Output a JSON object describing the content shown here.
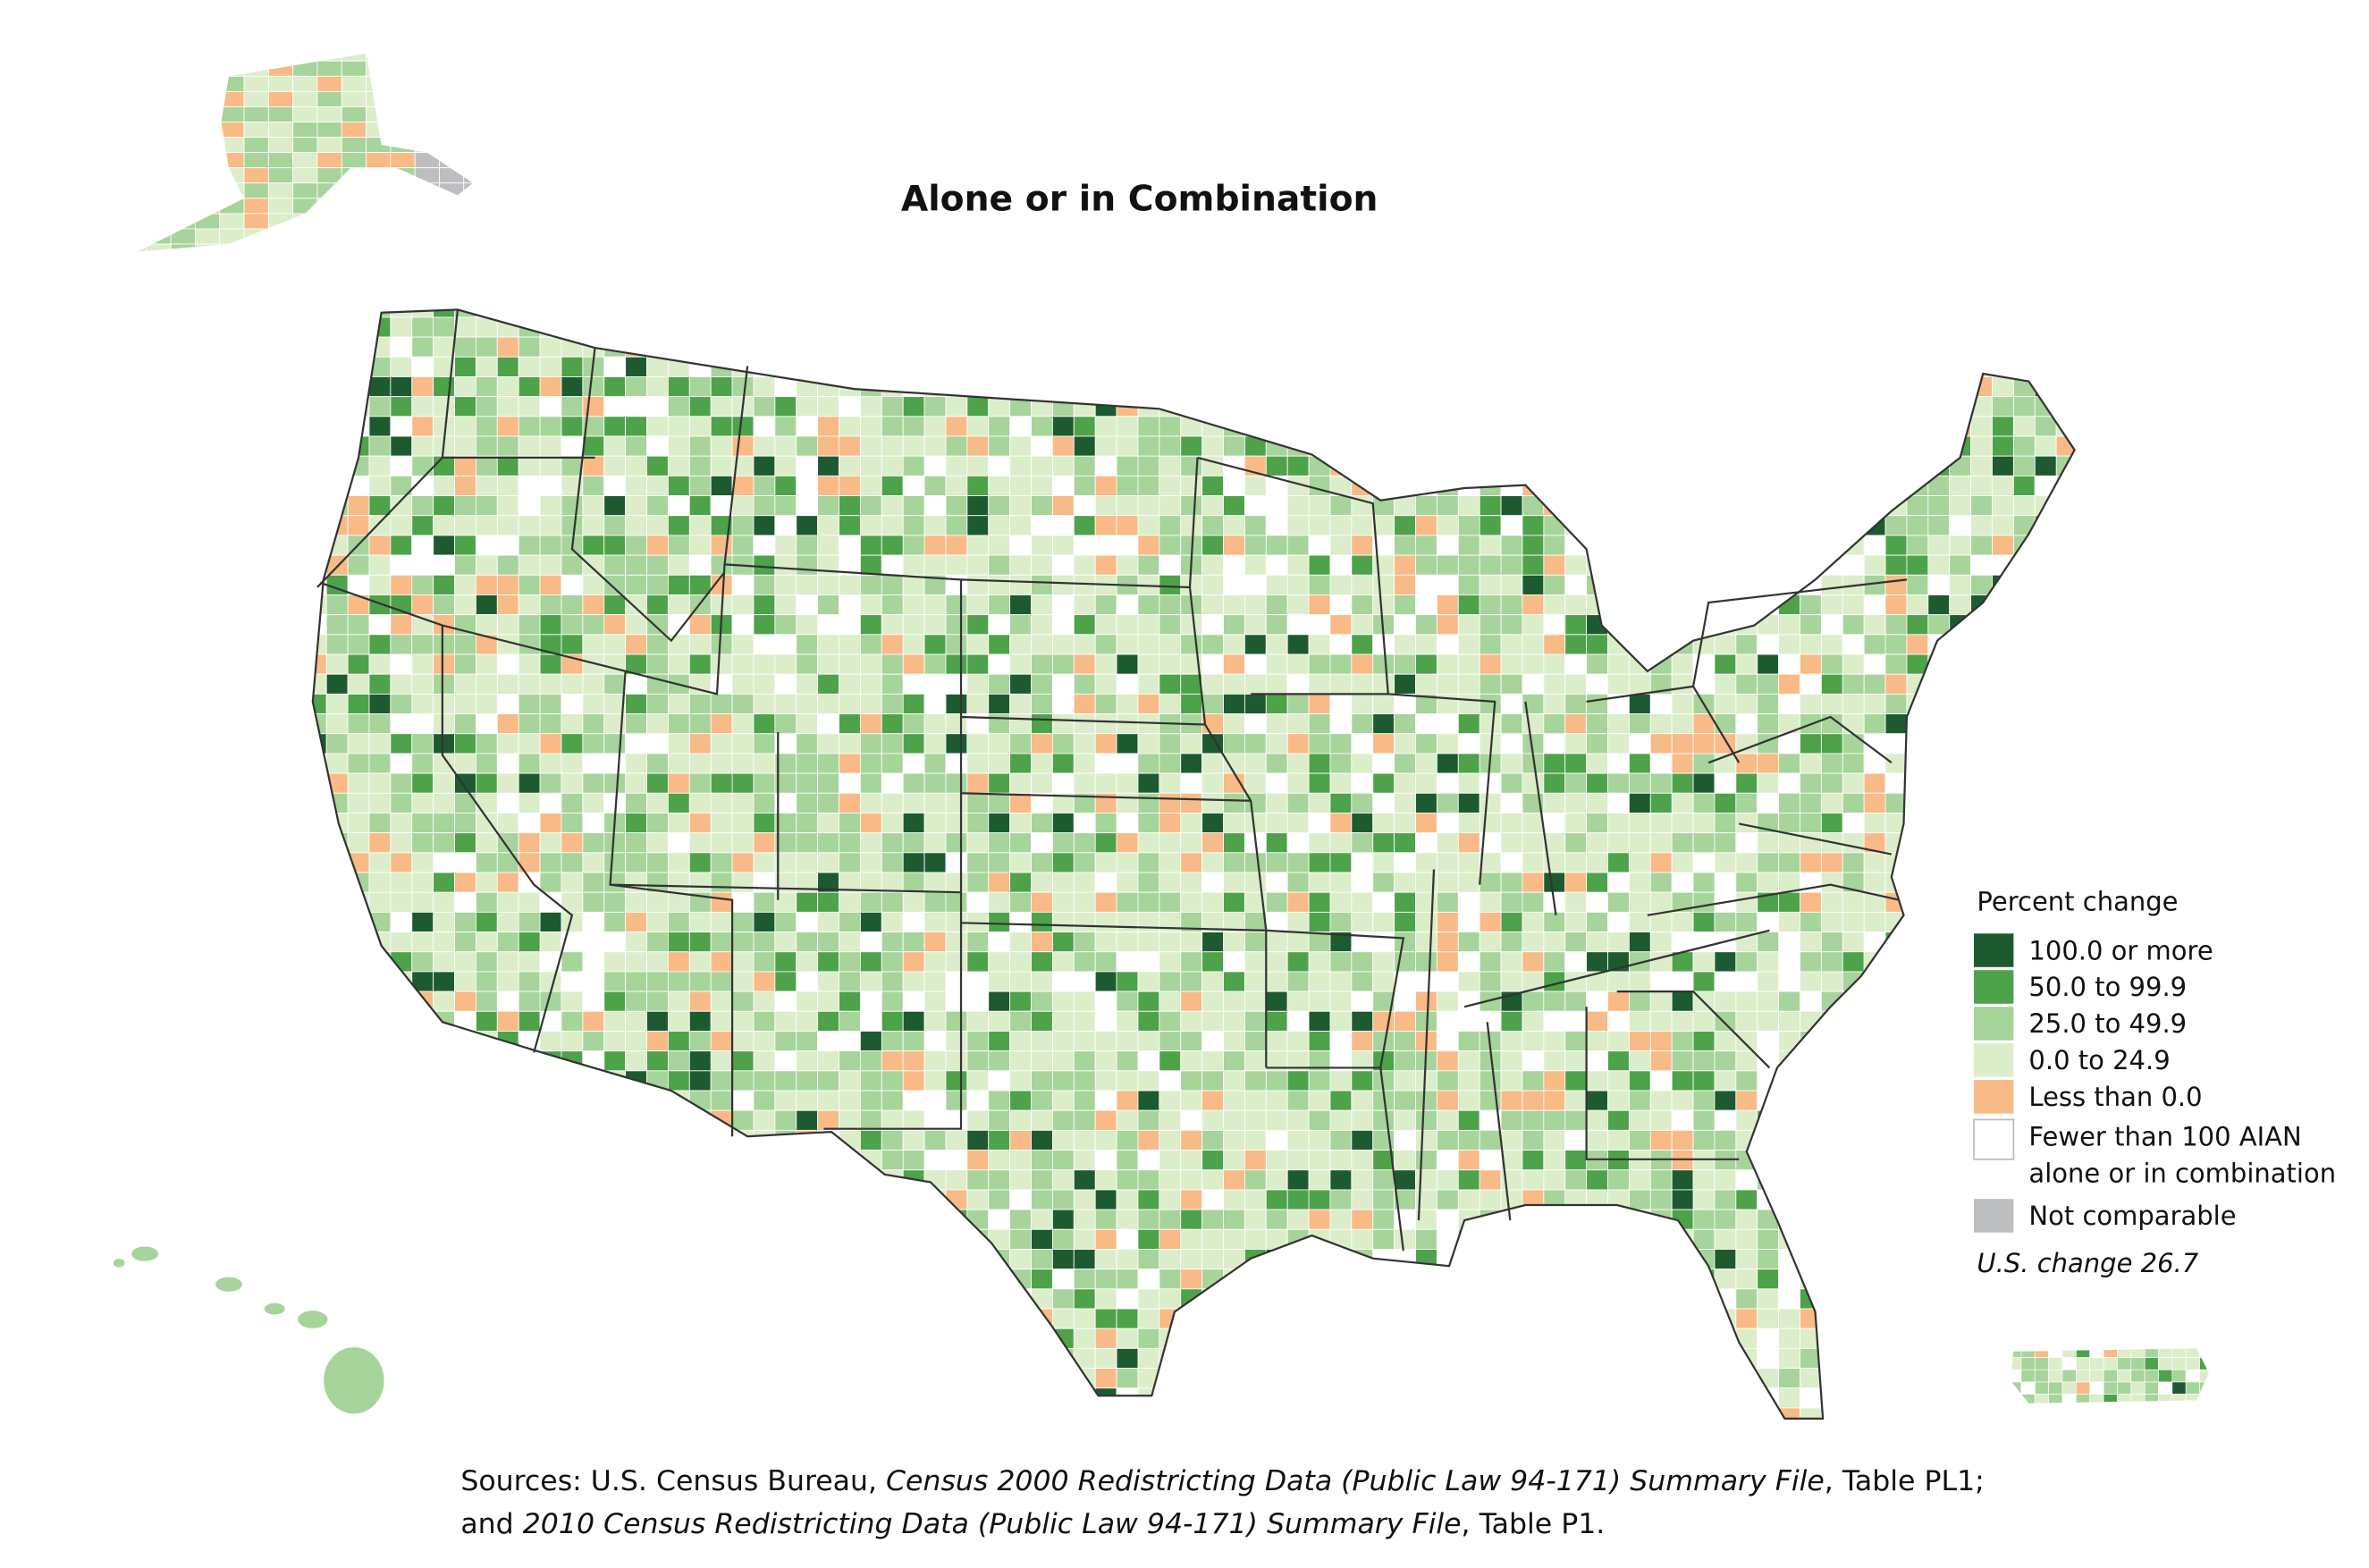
{
  "title": "Alone or in Combination",
  "legend": {
    "title": "Percent change",
    "items": [
      {
        "label": "100.0 or more",
        "color": "#1d5a30"
      },
      {
        "label": "50.0 to 99.9",
        "color": "#4ea24a"
      },
      {
        "label": "25.0 to 49.9",
        "color": "#a6d49a"
      },
      {
        "label": "0.0 to 24.9",
        "color": "#dcedca"
      },
      {
        "label": "Less than 0.0",
        "color": "#f8ba86"
      },
      {
        "label": [
          "Fewer than 100 AIAN",
          "alone or in combination"
        ],
        "color": "#ffffff"
      },
      {
        "label": "Not comparable",
        "color": "#bcbec0"
      }
    ],
    "note": "U.S. change 26.7"
  },
  "sources": [
    [
      {
        "text": "Sources: U.S. Census Bureau, "
      },
      {
        "text": "Census 2000 Redistricting Data (Public Law 94-171) Summary File",
        "italic": true
      },
      {
        "text": ", Table PL1;"
      }
    ],
    [
      {
        "text": "and "
      },
      {
        "text": "2010 Census Redistricting Data (Public Law 94-171) Summary File",
        "italic": true
      },
      {
        "text": ", Table P1."
      }
    ]
  ]
}
